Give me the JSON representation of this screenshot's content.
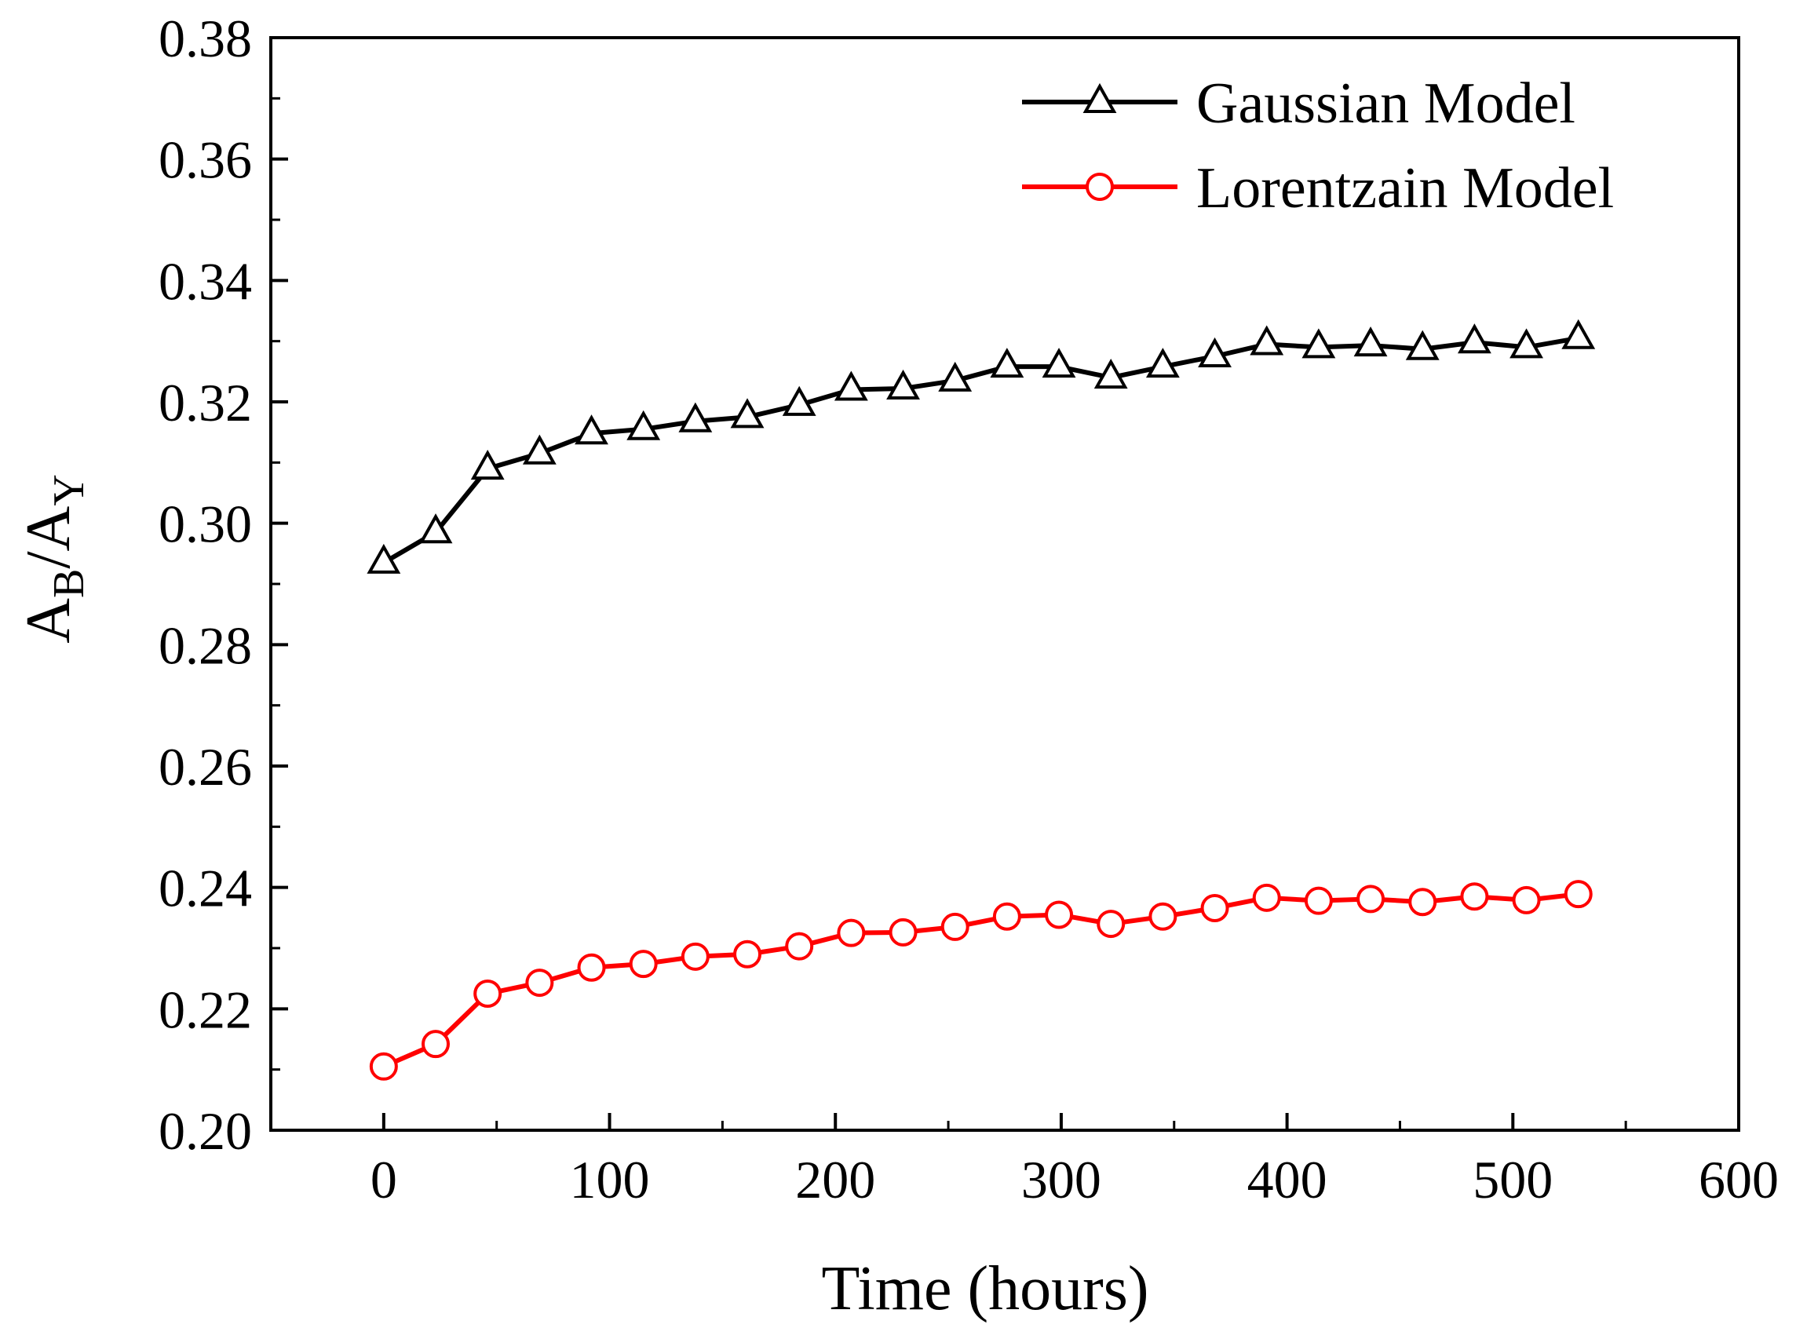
{
  "chart_data": {
    "type": "line",
    "xlabel": "Time (hours)",
    "ylabel": {
      "base1": "A",
      "sub1": "B",
      "sep": "/",
      "base2": "A",
      "sub2": "Y"
    },
    "xlim": [
      -50,
      600
    ],
    "ylim": [
      0.2,
      0.38
    ],
    "xticks": [
      0,
      100,
      200,
      300,
      400,
      500,
      600
    ],
    "xtick_labels": [
      "0",
      "100",
      "200",
      "300",
      "400",
      "500",
      "600"
    ],
    "yticks": [
      0.2,
      0.22,
      0.24,
      0.26,
      0.28,
      0.3,
      0.32,
      0.34,
      0.36,
      0.38
    ],
    "ytick_labels": [
      "0.20",
      "0.22",
      "0.24",
      "0.26",
      "0.28",
      "0.30",
      "0.32",
      "0.34",
      "0.36",
      "0.38"
    ],
    "legend_position": "top-right",
    "x": [
      0,
      23,
      46,
      69,
      92,
      115,
      138,
      161,
      184,
      207,
      230,
      253,
      276,
      299,
      322,
      345,
      368,
      391,
      414,
      437,
      460,
      483,
      506,
      529
    ],
    "series": [
      {
        "name": "Gaussian Model",
        "color": "#000000",
        "marker": "triangle",
        "values": [
          0.2935,
          0.2985,
          0.309,
          0.3115,
          0.3148,
          0.3155,
          0.3168,
          0.3175,
          0.3195,
          0.322,
          0.3222,
          0.3235,
          0.3258,
          0.3258,
          0.324,
          0.3258,
          0.3275,
          0.3295,
          0.329,
          0.3293,
          0.3287,
          0.3298,
          0.329,
          0.3305
        ]
      },
      {
        "name": "Lorentzain Model",
        "color": "#ff0000",
        "marker": "circle",
        "values": [
          0.2105,
          0.2142,
          0.2225,
          0.2243,
          0.2268,
          0.2274,
          0.2286,
          0.229,
          0.2303,
          0.2325,
          0.2326,
          0.2335,
          0.2352,
          0.2355,
          0.234,
          0.2352,
          0.2366,
          0.2383,
          0.2378,
          0.2381,
          0.2376,
          0.2385,
          0.2379,
          0.2389
        ]
      }
    ]
  }
}
